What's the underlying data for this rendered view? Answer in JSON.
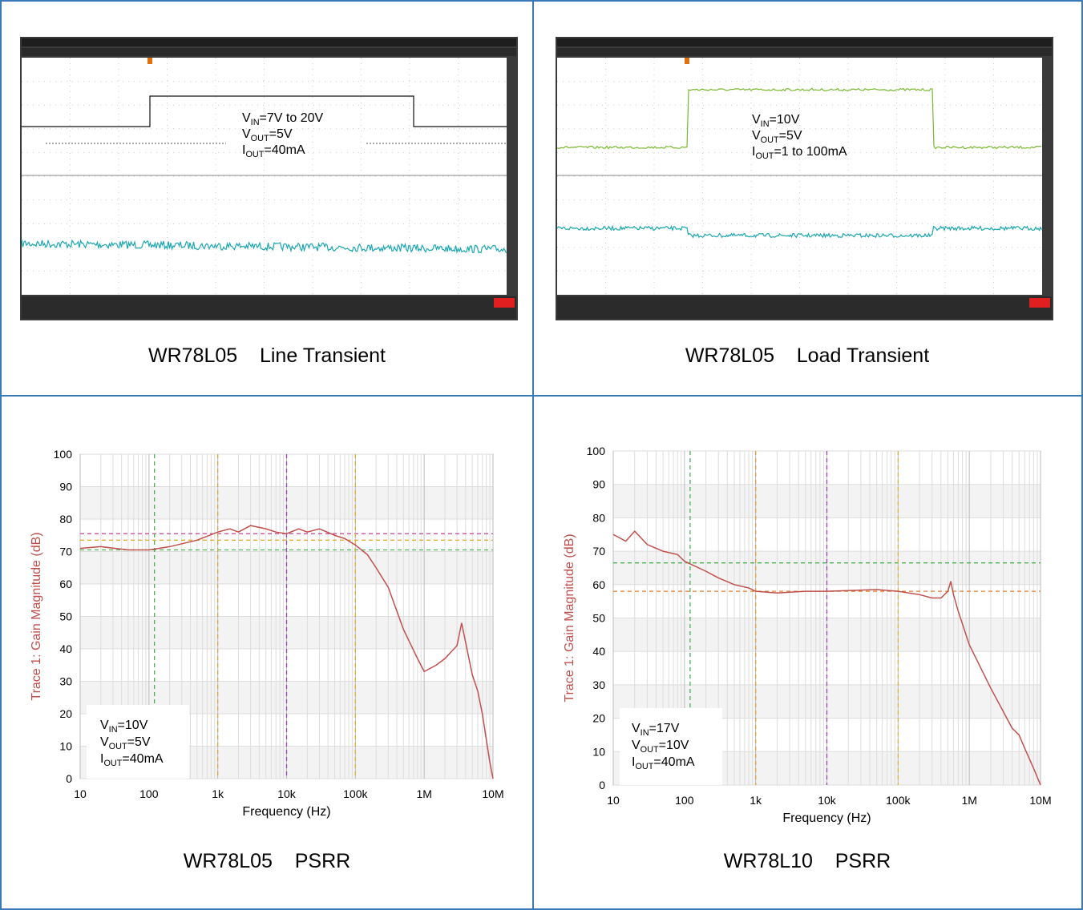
{
  "panels": [
    {
      "caption": "WR78L05    Line Transient",
      "annotation": [
        {
          "main": "V",
          "sub": "IN",
          "rest": "=7V to 20V"
        },
        {
          "main": "V",
          "sub": "OUT",
          "rest": "=5V"
        },
        {
          "main": "I",
          "sub": "OUT",
          "rest": "=40mA"
        }
      ]
    },
    {
      "caption": "WR78L05    Load Transient",
      "annotation": [
        {
          "main": "V",
          "sub": "IN",
          "rest": "=10V"
        },
        {
          "main": "V",
          "sub": "OUT",
          "rest": "=5V"
        },
        {
          "main": "I",
          "sub": "OUT",
          "rest": "=1 to 100mA"
        }
      ]
    }
  ],
  "chart_data": [
    {
      "type": "line",
      "title": "WR78L05    PSRR",
      "x_label": "Frequency (Hz)",
      "y_label": "Trace 1: Gain Magnitude (dB)",
      "log_x": true,
      "grid": true,
      "xlim": [
        10,
        10000000
      ],
      "ylim": [
        0,
        100
      ],
      "xticks": [
        10,
        100,
        {
          "value": 1000,
          "label": "1k"
        },
        {
          "value": 10000,
          "label": "10k"
        },
        {
          "value": 100000,
          "label": "100k"
        },
        {
          "value": 1000000,
          "label": "1M"
        },
        {
          "value": 10000000,
          "label": "10M"
        }
      ],
      "yticks": [
        0,
        10,
        20,
        30,
        40,
        50,
        60,
        70,
        80,
        90,
        100
      ],
      "annotation": [
        {
          "main": "V",
          "sub": "IN",
          "rest": "=10V"
        },
        {
          "main": "V",
          "sub": "OUT",
          "rest": "=5V"
        },
        {
          "main": "I",
          "sub": "OUT",
          "rest": "=40mA"
        }
      ],
      "cursors": [
        {
          "axis": "y",
          "value": 75.5,
          "color": "#c0409a"
        },
        {
          "axis": "y",
          "value": 73.5,
          "color": "#e0b030"
        },
        {
          "axis": "y",
          "value": 70.5,
          "color": "#4caf50"
        },
        {
          "axis": "x",
          "value": 120,
          "color": "#4caf50"
        },
        {
          "axis": "x",
          "value": 1000,
          "color": "#e0a040"
        },
        {
          "axis": "x",
          "value": 10000,
          "color": "#9b3fb5"
        },
        {
          "axis": "x",
          "value": 100000,
          "color": "#e0b030"
        }
      ],
      "x": [
        10,
        20,
        50,
        100,
        200,
        500,
        1000,
        1500,
        2000,
        3000,
        5000,
        7000,
        10000,
        15000,
        20000,
        30000,
        50000,
        70000,
        100000,
        150000,
        200000,
        300000,
        500000,
        800000,
        1000000,
        1500000,
        2000000,
        3000000,
        3500000,
        4000000,
        5000000,
        6000000,
        7000000,
        8000000,
        9000000,
        10000000
      ],
      "series": [
        {
          "color": "#c0504d",
          "values": [
            71,
            71.5,
            70.5,
            70.5,
            71.5,
            73.5,
            76,
            77,
            76,
            78,
            77,
            76,
            75.5,
            77,
            76,
            77,
            75,
            74,
            72,
            69,
            65,
            59,
            46,
            37,
            33,
            35,
            37,
            41,
            48,
            42,
            32,
            27,
            20,
            12,
            5,
            0
          ]
        }
      ]
    },
    {
      "type": "line",
      "title": "WR78L10    PSRR",
      "x_label": "Frequency (Hz)",
      "y_label": "Trace 1: Gain Magnitude (dB)",
      "log_x": true,
      "grid": true,
      "xlim": [
        10,
        10000000
      ],
      "ylim": [
        0,
        100
      ],
      "xticks": [
        10,
        100,
        {
          "value": 1000,
          "label": "1k"
        },
        {
          "value": 10000,
          "label": "10k"
        },
        {
          "value": 100000,
          "label": "100k"
        },
        {
          "value": 1000000,
          "label": "1M"
        },
        {
          "value": 10000000,
          "label": "10M"
        }
      ],
      "yticks": [
        0,
        10,
        20,
        30,
        40,
        50,
        60,
        70,
        80,
        90,
        100
      ],
      "annotation": [
        {
          "main": "V",
          "sub": "IN",
          "rest": "=17V"
        },
        {
          "main": "V",
          "sub": "OUT",
          "rest": "=10V"
        },
        {
          "main": "I",
          "sub": "OUT",
          "rest": "=40mA"
        }
      ],
      "cursors": [
        {
          "axis": "y",
          "value": 66.5,
          "color": "#4caf50"
        },
        {
          "axis": "y",
          "value": 58,
          "color": "#e08030"
        },
        {
          "axis": "x",
          "value": 120,
          "color": "#4caf50"
        },
        {
          "axis": "x",
          "value": 1000,
          "color": "#e0a040"
        },
        {
          "axis": "x",
          "value": 10000,
          "color": "#9b3fb5"
        },
        {
          "axis": "x",
          "value": 100000,
          "color": "#e0b030"
        }
      ],
      "x": [
        10,
        15,
        20,
        30,
        50,
        80,
        100,
        200,
        300,
        500,
        800,
        1000,
        2000,
        5000,
        10000,
        50000,
        100000,
        200000,
        300000,
        400000,
        500000,
        550000,
        600000,
        700000,
        1000000,
        2000000,
        3000000,
        4000000,
        5000000,
        6000000,
        8000000,
        10000000
      ],
      "series": [
        {
          "color": "#c0504d",
          "values": [
            75,
            73,
            76,
            72,
            70,
            69,
            67,
            64,
            62,
            60,
            59,
            58,
            57.5,
            58,
            58,
            58.5,
            58,
            57,
            56,
            56,
            58,
            61,
            57,
            52,
            42,
            29,
            22,
            17,
            15,
            11,
            5,
            0
          ]
        }
      ]
    }
  ]
}
